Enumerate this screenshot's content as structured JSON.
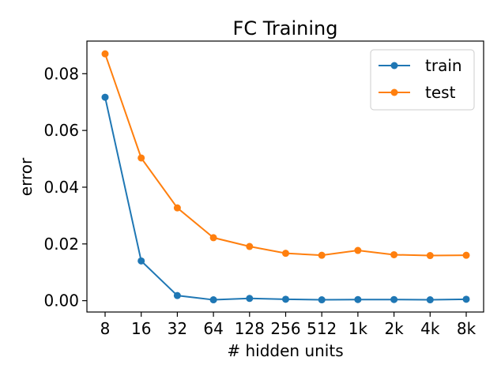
{
  "chart_data": {
    "type": "line",
    "title": "FC Training",
    "xlabel": "# hidden units",
    "ylabel": "error",
    "categories": [
      "8",
      "16",
      "32",
      "64",
      "128",
      "256",
      "512",
      "1k",
      "2k",
      "4k",
      "8k"
    ],
    "yticks": [
      "0.00",
      "0.02",
      "0.04",
      "0.06",
      "0.08"
    ],
    "ylim": [
      -0.004,
      0.0915
    ],
    "grid": false,
    "legend_position": "top-right",
    "series": [
      {
        "name": "train",
        "color": "#1f77b4",
        "marker": "circle",
        "values": [
          0.0717,
          0.014,
          0.0018,
          0.0003,
          0.0008,
          0.0005,
          0.0003,
          0.0004,
          0.0004,
          0.0003,
          0.0005
        ]
      },
      {
        "name": "test",
        "color": "#ff7f0e",
        "marker": "circle",
        "values": [
          0.087,
          0.0503,
          0.0327,
          0.0222,
          0.0191,
          0.0167,
          0.016,
          0.0177,
          0.0162,
          0.0159,
          0.016
        ]
      }
    ]
  }
}
